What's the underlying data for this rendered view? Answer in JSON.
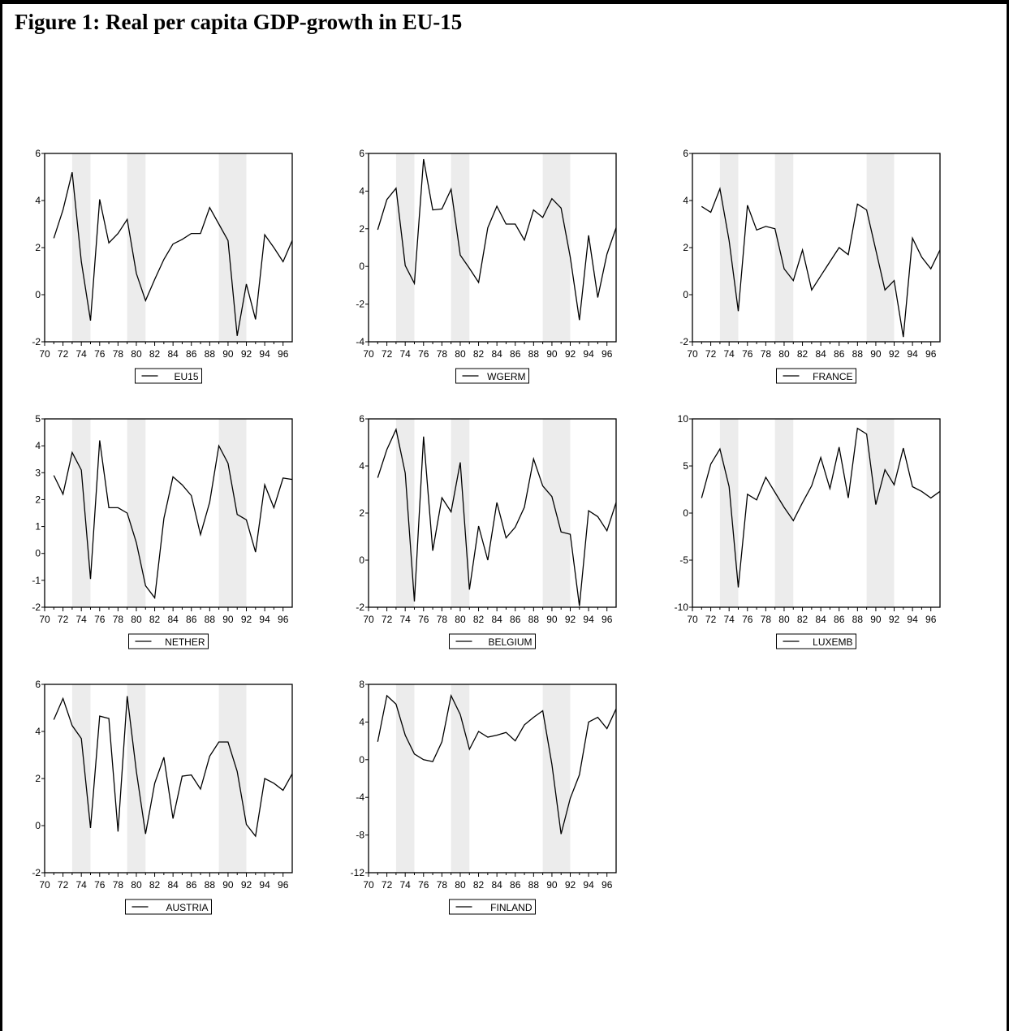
{
  "page": {
    "title": "Figure 1: Real per capita GDP-growth in EU-15"
  },
  "colors": {
    "line": "#000000",
    "recession_band": "#ececec",
    "frame": "#000000"
  },
  "chart_data": [
    {
      "type": "line",
      "legend": "EU15",
      "ylim": [
        -2,
        6
      ],
      "yticks": [
        -2,
        0,
        2,
        4,
        6
      ],
      "xlim": [
        1970,
        1997
      ],
      "xticks": [
        70,
        72,
        74,
        76,
        78,
        80,
        82,
        84,
        86,
        88,
        90,
        92,
        94,
        96
      ],
      "shaded": [
        [
          1973,
          1975
        ],
        [
          1979,
          1981
        ],
        [
          1989,
          1992
        ]
      ],
      "legend_position": "bottom-center",
      "x": [
        1971,
        1972,
        1973,
        1974,
        1975,
        1976,
        1977,
        1978,
        1979,
        1980,
        1981,
        1982,
        1983,
        1984,
        1985,
        1986,
        1987,
        1988,
        1989,
        1990,
        1991,
        1992,
        1993,
        1994,
        1995,
        1996,
        1997
      ],
      "values": [
        2.4,
        3.6,
        5.2,
        1.4,
        -1.1,
        4.05,
        2.2,
        2.6,
        3.2,
        0.9,
        -0.25,
        0.65,
        1.5,
        2.15,
        2.35,
        2.6,
        2.6,
        3.7,
        3.0,
        2.3,
        -1.75,
        0.45,
        -1.05,
        2.55,
        2.0,
        1.4,
        2.3
      ]
    },
    {
      "type": "line",
      "legend": "WGERM",
      "ylim": [
        -4,
        6
      ],
      "yticks": [
        -4,
        -2,
        0,
        2,
        4,
        6
      ],
      "xlim": [
        1970,
        1997
      ],
      "xticks": [
        70,
        72,
        74,
        76,
        78,
        80,
        82,
        84,
        86,
        88,
        90,
        92,
        94,
        96
      ],
      "shaded": [
        [
          1973,
          1975
        ],
        [
          1979,
          1981
        ],
        [
          1989,
          1992
        ]
      ],
      "legend_position": "bottom-center",
      "x": [
        1971,
        1972,
        1973,
        1974,
        1975,
        1976,
        1977,
        1978,
        1979,
        1980,
        1981,
        1982,
        1983,
        1984,
        1985,
        1986,
        1987,
        1988,
        1989,
        1990,
        1991,
        1992,
        1993,
        1994,
        1995,
        1996,
        1997
      ],
      "values": [
        1.95,
        3.55,
        4.15,
        0.05,
        -0.9,
        5.7,
        3.0,
        3.05,
        4.1,
        0.6,
        -0.1,
        -0.85,
        2.05,
        3.2,
        2.25,
        2.25,
        1.4,
        3.0,
        2.6,
        3.6,
        3.1,
        0.5,
        -2.85,
        1.65,
        -1.65,
        0.65,
        2.05
      ]
    },
    {
      "type": "line",
      "legend": "FRANCE",
      "ylim": [
        -2,
        6
      ],
      "yticks": [
        -2,
        0,
        2,
        4,
        6
      ],
      "xlim": [
        1970,
        1997
      ],
      "xticks": [
        70,
        72,
        74,
        76,
        78,
        80,
        82,
        84,
        86,
        88,
        90,
        92,
        94,
        96
      ],
      "shaded": [
        [
          1973,
          1975
        ],
        [
          1979,
          1981
        ],
        [
          1989,
          1992
        ]
      ],
      "legend_position": "bottom-center",
      "x": [
        1971,
        1972,
        1973,
        1974,
        1975,
        1976,
        1977,
        1978,
        1979,
        1980,
        1981,
        1982,
        1983,
        1984,
        1985,
        1986,
        1987,
        1988,
        1989,
        1990,
        1991,
        1992,
        1993,
        1994,
        1995,
        1996,
        1997
      ],
      "values": [
        3.75,
        3.5,
        4.5,
        2.3,
        -0.7,
        3.8,
        2.75,
        2.9,
        2.8,
        1.1,
        0.6,
        1.9,
        0.2,
        0.8,
        1.4,
        2.0,
        1.7,
        3.85,
        3.6,
        1.9,
        0.2,
        0.6,
        -1.8,
        2.4,
        1.6,
        1.1,
        1.9
      ]
    },
    {
      "type": "line",
      "legend": "NETHER",
      "ylim": [
        -2,
        5
      ],
      "yticks": [
        -2,
        -1,
        0,
        1,
        2,
        3,
        4,
        5
      ],
      "xlim": [
        1970,
        1997
      ],
      "xticks": [
        70,
        72,
        74,
        76,
        78,
        80,
        82,
        84,
        86,
        88,
        90,
        92,
        94,
        96
      ],
      "shaded": [
        [
          1973,
          1975
        ],
        [
          1979,
          1981
        ],
        [
          1989,
          1992
        ]
      ],
      "legend_position": "bottom-center",
      "x": [
        1971,
        1972,
        1973,
        1974,
        1975,
        1976,
        1977,
        1978,
        1979,
        1980,
        1981,
        1982,
        1983,
        1984,
        1985,
        1986,
        1987,
        1988,
        1989,
        1990,
        1991,
        1992,
        1993,
        1994,
        1995,
        1996,
        1997
      ],
      "values": [
        2.9,
        2.2,
        3.75,
        3.1,
        -0.95,
        4.2,
        1.7,
        1.7,
        1.5,
        0.4,
        -1.2,
        -1.65,
        1.3,
        2.85,
        2.55,
        2.15,
        0.7,
        1.9,
        4.0,
        3.35,
        1.45,
        1.25,
        0.05,
        2.55,
        1.7,
        2.8,
        2.75
      ]
    },
    {
      "type": "line",
      "legend": "BELGIUM",
      "ylim": [
        -2,
        6
      ],
      "yticks": [
        -2,
        0,
        2,
        4,
        6
      ],
      "xlim": [
        1970,
        1997
      ],
      "xticks": [
        70,
        72,
        74,
        76,
        78,
        80,
        82,
        84,
        86,
        88,
        90,
        92,
        94,
        96
      ],
      "shaded": [
        [
          1973,
          1975
        ],
        [
          1979,
          1981
        ],
        [
          1989,
          1992
        ]
      ],
      "legend_position": "bottom-center",
      "x": [
        1971,
        1972,
        1973,
        1974,
        1975,
        1976,
        1977,
        1978,
        1979,
        1980,
        1981,
        1982,
        1983,
        1984,
        1985,
        1986,
        1987,
        1988,
        1989,
        1990,
        1991,
        1992,
        1993,
        1994,
        1995,
        1996,
        1997
      ],
      "values": [
        3.5,
        4.7,
        5.55,
        3.7,
        -1.75,
        5.25,
        0.4,
        2.65,
        2.05,
        4.15,
        -1.25,
        1.45,
        0.0,
        2.45,
        0.95,
        1.4,
        2.25,
        4.3,
        3.15,
        2.7,
        1.2,
        1.1,
        -1.95,
        2.1,
        1.85,
        1.25,
        2.45
      ]
    },
    {
      "type": "line",
      "legend": "LUXEMB",
      "ylim": [
        -10,
        10
      ],
      "yticks": [
        -10,
        -5,
        0,
        5,
        10
      ],
      "xlim": [
        1970,
        1997
      ],
      "xticks": [
        70,
        72,
        74,
        76,
        78,
        80,
        82,
        84,
        86,
        88,
        90,
        92,
        94,
        96
      ],
      "shaded": [
        [
          1973,
          1975
        ],
        [
          1979,
          1981
        ],
        [
          1989,
          1992
        ]
      ],
      "legend_position": "bottom-center",
      "x": [
        1971,
        1972,
        1973,
        1974,
        1975,
        1976,
        1977,
        1978,
        1979,
        1980,
        1981,
        1982,
        1983,
        1984,
        1985,
        1986,
        1987,
        1988,
        1989,
        1990,
        1991,
        1992,
        1993,
        1994,
        1995,
        1996,
        1997
      ],
      "values": [
        1.6,
        5.2,
        6.8,
        2.8,
        -7.9,
        2.0,
        1.4,
        3.8,
        2.2,
        0.6,
        -0.8,
        1.1,
        2.9,
        5.9,
        2.6,
        7.0,
        1.6,
        9.0,
        8.4,
        0.9,
        4.6,
        3.0,
        6.9,
        2.8,
        2.3,
        1.6,
        2.3
      ]
    },
    {
      "type": "line",
      "legend": "AUSTRIA",
      "ylim": [
        -2,
        6
      ],
      "yticks": [
        -2,
        0,
        2,
        4,
        6
      ],
      "xlim": [
        1970,
        1997
      ],
      "xticks": [
        70,
        72,
        74,
        76,
        78,
        80,
        82,
        84,
        86,
        88,
        90,
        92,
        94,
        96
      ],
      "shaded": [
        [
          1973,
          1975
        ],
        [
          1979,
          1981
        ],
        [
          1989,
          1992
        ]
      ],
      "legend_position": "bottom-center",
      "x": [
        1971,
        1972,
        1973,
        1974,
        1975,
        1976,
        1977,
        1978,
        1979,
        1980,
        1981,
        1982,
        1983,
        1984,
        1985,
        1986,
        1987,
        1988,
        1989,
        1990,
        1991,
        1992,
        1993,
        1994,
        1995,
        1996,
        1997
      ],
      "values": [
        4.5,
        5.4,
        4.25,
        3.7,
        -0.1,
        4.65,
        4.55,
        -0.25,
        5.5,
        2.3,
        -0.35,
        1.8,
        2.9,
        0.3,
        2.1,
        2.15,
        1.55,
        2.95,
        3.55,
        3.55,
        2.3,
        0.05,
        -0.45,
        2.0,
        1.8,
        1.5,
        2.2
      ]
    },
    {
      "type": "line",
      "legend": "FINLAND",
      "ylim": [
        -12,
        8
      ],
      "yticks": [
        -12,
        -8,
        -4,
        0,
        4,
        8
      ],
      "xlim": [
        1970,
        1997
      ],
      "xticks": [
        70,
        72,
        74,
        76,
        78,
        80,
        82,
        84,
        86,
        88,
        90,
        92,
        94,
        96
      ],
      "shaded": [
        [
          1973,
          1975
        ],
        [
          1979,
          1981
        ],
        [
          1989,
          1992
        ]
      ],
      "legend_position": "bottom-center",
      "x": [
        1971,
        1972,
        1973,
        1974,
        1975,
        1976,
        1977,
        1978,
        1979,
        1980,
        1981,
        1982,
        1983,
        1984,
        1985,
        1986,
        1987,
        1988,
        1989,
        1990,
        1991,
        1992,
        1993,
        1994,
        1995,
        1996,
        1997
      ],
      "values": [
        1.9,
        6.8,
        5.9,
        2.6,
        0.6,
        0.0,
        -0.2,
        1.9,
        6.8,
        4.8,
        1.1,
        3.0,
        2.4,
        2.6,
        2.9,
        2.0,
        3.7,
        4.5,
        5.2,
        -0.5,
        -7.9,
        -4.1,
        -1.6,
        4.0,
        4.5,
        3.3,
        5.4
      ]
    }
  ]
}
